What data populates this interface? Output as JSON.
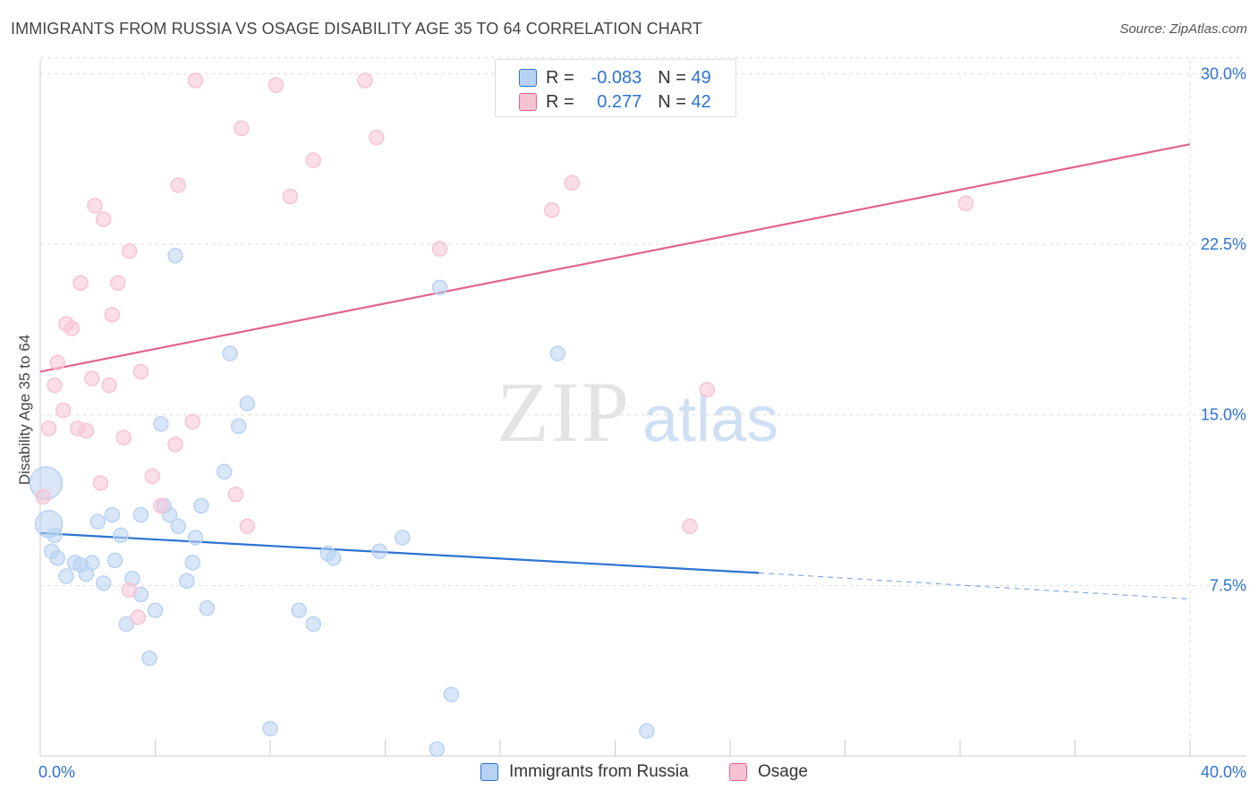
{
  "title": "IMMIGRANTS FROM RUSSIA VS OSAGE DISABILITY AGE 35 TO 64 CORRELATION CHART",
  "source": "Source: ZipAtlas.com",
  "watermark": {
    "zip": "ZIP",
    "atlas": "atlas"
  },
  "legend": {
    "rows": [
      {
        "r_label": "R =",
        "r_value": "-0.083",
        "n_label": "N =",
        "n_value": "49"
      },
      {
        "r_label": "R =",
        "r_value": "0.277",
        "n_label": "N =",
        "n_value": "42"
      }
    ]
  },
  "colors": {
    "blue": "#2e73d2",
    "blue_fill": "#b8d2f3",
    "pink": "#e2648e",
    "pink_fill": "#f7c3d3",
    "grid": "#dddddd"
  },
  "chart_data": {
    "type": "scatter",
    "title": "IMMIGRANTS FROM RUSSIA VS OSAGE DISABILITY AGE 35 TO 64 CORRELATION CHART",
    "xlabel": "",
    "ylabel": "Disability Age 35 to 64",
    "xlim": [
      0,
      40
    ],
    "ylim": [
      0,
      31
    ],
    "x_tick_labels": [
      "0.0%",
      "40.0%"
    ],
    "y_ticks": [
      7.5,
      15.0,
      22.5,
      30.0
    ],
    "y_tick_labels": [
      "7.5%",
      "15.0%",
      "22.5%",
      "30.0%"
    ],
    "grid": true,
    "legend_position": "bottom",
    "series": [
      {
        "name": "Immigrants from Russia",
        "color": "#2e73d2",
        "fill": "#b8d2f3",
        "r": -0.083,
        "n": 49,
        "trend": {
          "x0": 0,
          "y0": 9.8,
          "x1": 25,
          "y1": 8.05,
          "dash_to_x": 40,
          "dash_to_y": 6.9
        },
        "points": [
          [
            0.2,
            12.0,
            3
          ],
          [
            0.3,
            10.2,
            2
          ],
          [
            0.4,
            9.0,
            1
          ],
          [
            0.5,
            9.7,
            1
          ],
          [
            0.6,
            8.7,
            1
          ],
          [
            0.9,
            7.9,
            1
          ],
          [
            1.2,
            8.5,
            1
          ],
          [
            1.4,
            8.4,
            1
          ],
          [
            1.6,
            8.0,
            1
          ],
          [
            1.8,
            8.5,
            1
          ],
          [
            2.0,
            10.3,
            1
          ],
          [
            2.2,
            7.6,
            1
          ],
          [
            2.5,
            10.6,
            1
          ],
          [
            2.6,
            8.6,
            1
          ],
          [
            2.8,
            9.7,
            1
          ],
          [
            3.0,
            5.8,
            1
          ],
          [
            3.2,
            7.8,
            1
          ],
          [
            3.5,
            7.1,
            1
          ],
          [
            3.5,
            10.6,
            1
          ],
          [
            3.8,
            4.3,
            1
          ],
          [
            4.0,
            6.4,
            1
          ],
          [
            4.2,
            14.6,
            1
          ],
          [
            4.3,
            11.0,
            1
          ],
          [
            4.5,
            10.6,
            1
          ],
          [
            4.7,
            22.0,
            1
          ],
          [
            4.8,
            10.1,
            1
          ],
          [
            5.1,
            7.7,
            1
          ],
          [
            5.3,
            8.5,
            1
          ],
          [
            5.4,
            9.6,
            1
          ],
          [
            5.6,
            11.0,
            1
          ],
          [
            5.8,
            6.5,
            1
          ],
          [
            6.4,
            12.5,
            1
          ],
          [
            6.6,
            17.7,
            1
          ],
          [
            6.9,
            14.5,
            1
          ],
          [
            7.2,
            15.5,
            1
          ],
          [
            8.0,
            1.2,
            1
          ],
          [
            9.0,
            6.4,
            1
          ],
          [
            9.5,
            5.8,
            1
          ],
          [
            10.0,
            8.9,
            1
          ],
          [
            10.2,
            8.7,
            1
          ],
          [
            11.8,
            9.0,
            1
          ],
          [
            12.6,
            9.6,
            1
          ],
          [
            13.8,
            0.3,
            1
          ],
          [
            13.9,
            20.6,
            1
          ],
          [
            14.3,
            2.7,
            1
          ],
          [
            18.0,
            17.7,
            1
          ],
          [
            21.1,
            1.1,
            1
          ]
        ]
      },
      {
        "name": "Osage",
        "color": "#e2648e",
        "fill": "#f7c3d3",
        "r": 0.277,
        "n": 42,
        "trend": {
          "x0": 0,
          "y0": 16.9,
          "x1": 40,
          "y1": 26.9
        },
        "points": [
          [
            0.1,
            11.4,
            1
          ],
          [
            0.3,
            14.4,
            1
          ],
          [
            0.5,
            16.3,
            1
          ],
          [
            0.6,
            17.3,
            1
          ],
          [
            0.8,
            15.2,
            1
          ],
          [
            0.9,
            19.0,
            1
          ],
          [
            1.1,
            18.8,
            1
          ],
          [
            1.3,
            14.4,
            1
          ],
          [
            1.4,
            20.8,
            1
          ],
          [
            1.6,
            14.3,
            1
          ],
          [
            1.8,
            16.6,
            1
          ],
          [
            1.9,
            24.2,
            1
          ],
          [
            2.1,
            12.0,
            1
          ],
          [
            2.2,
            23.6,
            1
          ],
          [
            2.4,
            16.3,
            1
          ],
          [
            2.5,
            19.4,
            1
          ],
          [
            2.7,
            20.8,
            1
          ],
          [
            2.9,
            14.0,
            1
          ],
          [
            3.1,
            7.3,
            1
          ],
          [
            3.1,
            22.2,
            1
          ],
          [
            3.4,
            6.1,
            1
          ],
          [
            3.5,
            16.9,
            1
          ],
          [
            3.9,
            12.3,
            1
          ],
          [
            4.2,
            11.0,
            1
          ],
          [
            4.7,
            13.7,
            1
          ],
          [
            4.8,
            25.1,
            1
          ],
          [
            5.3,
            14.7,
            1
          ],
          [
            5.4,
            29.7,
            1
          ],
          [
            6.8,
            11.5,
            1
          ],
          [
            7.0,
            27.6,
            1
          ],
          [
            7.2,
            10.1,
            1
          ],
          [
            8.2,
            29.5,
            1
          ],
          [
            8.7,
            24.6,
            1
          ],
          [
            9.5,
            26.2,
            1
          ],
          [
            11.3,
            29.7,
            1
          ],
          [
            11.7,
            27.2,
            1
          ],
          [
            13.9,
            22.3,
            1
          ],
          [
            17.8,
            24.0,
            1
          ],
          [
            18.5,
            25.2,
            1
          ],
          [
            22.6,
            10.1,
            1
          ],
          [
            23.2,
            16.1,
            1
          ],
          [
            32.2,
            24.3,
            1
          ]
        ]
      }
    ]
  }
}
